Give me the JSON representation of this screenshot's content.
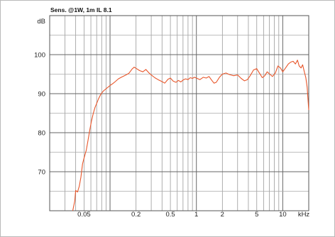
{
  "chart_data": {
    "type": "line",
    "title": "Sens. @1W, 1m IL 8.1",
    "ylabel": "dB",
    "xunit": "kHz",
    "x_scale": "log",
    "xlim": [
      0.02,
      20
    ],
    "ylim": [
      60,
      110
    ],
    "grid": true,
    "x_tick_labels": [
      {
        "value": 0.05,
        "label": "0.05"
      },
      {
        "value": 0.2,
        "label": "0.2"
      },
      {
        "value": 0.5,
        "label": "0.5"
      },
      {
        "value": 1,
        "label": "1"
      },
      {
        "value": 2,
        "label": "2"
      },
      {
        "value": 5,
        "label": "5"
      },
      {
        "value": 10,
        "label": "10"
      }
    ],
    "y_tick_labels": [
      {
        "value": 70,
        "label": "70"
      },
      {
        "value": 80,
        "label": "80"
      },
      {
        "value": 90,
        "label": "90"
      },
      {
        "value": 100,
        "label": "100"
      }
    ],
    "series": [
      {
        "color": "#e8562a",
        "points": [
          [
            0.037,
            60.0
          ],
          [
            0.039,
            62.5
          ],
          [
            0.04,
            65.2
          ],
          [
            0.042,
            64.8
          ],
          [
            0.044,
            66.3
          ],
          [
            0.046,
            68.6
          ],
          [
            0.048,
            72.0
          ],
          [
            0.05,
            73.5
          ],
          [
            0.053,
            75.5
          ],
          [
            0.055,
            77.5
          ],
          [
            0.058,
            80.5
          ],
          [
            0.061,
            83.0
          ],
          [
            0.064,
            85.0
          ],
          [
            0.067,
            86.5
          ],
          [
            0.07,
            87.5
          ],
          [
            0.074,
            88.8
          ],
          [
            0.078,
            89.8
          ],
          [
            0.083,
            90.6
          ],
          [
            0.088,
            91.1
          ],
          [
            0.094,
            91.6
          ],
          [
            0.1,
            92.1
          ],
          [
            0.108,
            92.6
          ],
          [
            0.115,
            93.1
          ],
          [
            0.125,
            93.8
          ],
          [
            0.135,
            94.2
          ],
          [
            0.15,
            94.7
          ],
          [
            0.165,
            95.2
          ],
          [
            0.18,
            96.3
          ],
          [
            0.19,
            96.8
          ],
          [
            0.2,
            96.5
          ],
          [
            0.22,
            95.9
          ],
          [
            0.24,
            95.6
          ],
          [
            0.26,
            96.2
          ],
          [
            0.28,
            95.4
          ],
          [
            0.3,
            94.8
          ],
          [
            0.33,
            94.1
          ],
          [
            0.36,
            93.6
          ],
          [
            0.4,
            93.1
          ],
          [
            0.43,
            92.7
          ],
          [
            0.47,
            93.7
          ],
          [
            0.5,
            94.0
          ],
          [
            0.54,
            93.2
          ],
          [
            0.58,
            92.9
          ],
          [
            0.62,
            93.4
          ],
          [
            0.66,
            93.0
          ],
          [
            0.7,
            93.5
          ],
          [
            0.75,
            93.8
          ],
          [
            0.8,
            93.6
          ],
          [
            0.85,
            94.1
          ],
          [
            0.9,
            93.9
          ],
          [
            0.95,
            94.2
          ],
          [
            1.0,
            94.0
          ],
          [
            1.1,
            93.6
          ],
          [
            1.2,
            94.2
          ],
          [
            1.3,
            94.0
          ],
          [
            1.4,
            94.4
          ],
          [
            1.5,
            93.5
          ],
          [
            1.6,
            92.7
          ],
          [
            1.7,
            92.9
          ],
          [
            1.85,
            94.2
          ],
          [
            2.0,
            95.0
          ],
          [
            2.2,
            95.3
          ],
          [
            2.4,
            94.9
          ],
          [
            2.7,
            94.6
          ],
          [
            3.0,
            94.8
          ],
          [
            3.3,
            93.9
          ],
          [
            3.6,
            93.3
          ],
          [
            3.9,
            93.6
          ],
          [
            4.2,
            94.6
          ],
          [
            4.6,
            96.1
          ],
          [
            5.0,
            96.4
          ],
          [
            5.4,
            95.2
          ],
          [
            5.8,
            94.1
          ],
          [
            6.2,
            94.6
          ],
          [
            6.6,
            95.6
          ],
          [
            7.0,
            95.1
          ],
          [
            7.6,
            94.4
          ],
          [
            8.2,
            95.3
          ],
          [
            8.8,
            97.1
          ],
          [
            9.4,
            96.6
          ],
          [
            10.0,
            95.6
          ],
          [
            10.8,
            96.6
          ],
          [
            11.6,
            97.6
          ],
          [
            12.4,
            98.1
          ],
          [
            13.2,
            98.3
          ],
          [
            14.0,
            97.6
          ],
          [
            14.8,
            98.6
          ],
          [
            15.5,
            97.1
          ],
          [
            16.3,
            96.6
          ],
          [
            17.0,
            97.4
          ],
          [
            17.8,
            95.6
          ],
          [
            18.5,
            94.1
          ],
          [
            19.2,
            91.6
          ],
          [
            20.0,
            85.8
          ]
        ]
      }
    ]
  }
}
